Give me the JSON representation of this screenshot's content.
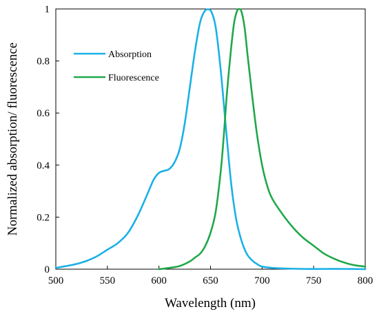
{
  "chart_data": {
    "type": "line",
    "title": "",
    "xlabel": "Wavelength (nm)",
    "ylabel": "Normalized absorption/ fluorescence",
    "xlim": [
      500,
      800
    ],
    "ylim": [
      0,
      1
    ],
    "xticks": [
      500,
      550,
      600,
      650,
      700,
      750,
      800
    ],
    "yticks": [
      0,
      0.2,
      0.4,
      0.6,
      0.8,
      1
    ],
    "ytick_labels": [
      "0",
      "0.2",
      "0.4",
      "0.6",
      "0.8",
      "1"
    ],
    "grid": false,
    "legend_position": "top-left",
    "series": [
      {
        "name": "Absorption",
        "color": "#1ab0e6",
        "x": [
          500,
          510,
          520,
          530,
          540,
          550,
          560,
          570,
          580,
          590,
          595,
          600,
          605,
          610,
          615,
          620,
          625,
          630,
          635,
          640,
          645,
          650,
          655,
          660,
          665,
          670,
          675,
          680,
          685,
          690,
          695,
          700,
          710,
          720,
          740,
          760,
          780,
          800
        ],
        "y": [
          0.005,
          0.012,
          0.02,
          0.032,
          0.05,
          0.075,
          0.1,
          0.14,
          0.21,
          0.3,
          0.345,
          0.37,
          0.378,
          0.385,
          0.41,
          0.46,
          0.56,
          0.7,
          0.84,
          0.95,
          0.995,
          0.995,
          0.93,
          0.76,
          0.54,
          0.33,
          0.19,
          0.11,
          0.06,
          0.035,
          0.02,
          0.01,
          0.005,
          0.003,
          0.001,
          0.001,
          0.001,
          0.0
        ]
      },
      {
        "name": "Fluorescence",
        "color": "#1fa84a",
        "x": [
          600,
          610,
          620,
          630,
          635,
          640,
          645,
          650,
          655,
          660,
          663,
          666,
          670,
          673,
          676,
          678,
          680,
          683,
          686,
          690,
          695,
          700,
          705,
          710,
          720,
          730,
          740,
          750,
          760,
          770,
          780,
          790,
          800
        ],
        "y": [
          0.0,
          0.005,
          0.012,
          0.03,
          0.045,
          0.06,
          0.09,
          0.14,
          0.22,
          0.38,
          0.52,
          0.68,
          0.85,
          0.95,
          0.995,
          1.0,
          0.99,
          0.93,
          0.82,
          0.68,
          0.52,
          0.4,
          0.32,
          0.27,
          0.21,
          0.16,
          0.12,
          0.09,
          0.06,
          0.04,
          0.025,
          0.015,
          0.01
        ]
      }
    ]
  }
}
